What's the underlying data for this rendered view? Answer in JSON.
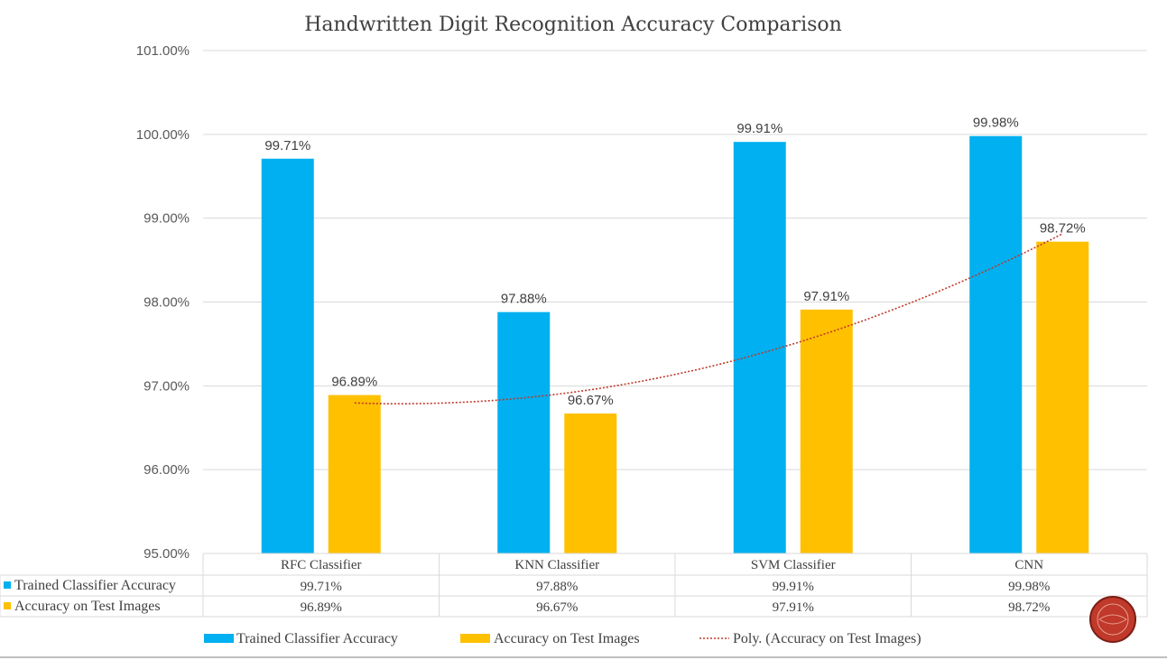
{
  "chart_data": {
    "type": "bar",
    "title": "Handwritten Digit Recognition Accuracy Comparison",
    "categories": [
      "RFC Classifier",
      "KNN Classifier",
      "SVM Classifier",
      "CNN"
    ],
    "series": [
      {
        "name": "Trained Classifier Accuracy",
        "values": [
          99.71,
          97.88,
          99.91,
          99.98
        ],
        "labels": [
          "99.71%",
          "97.88%",
          "99.91%",
          "99.98%"
        ],
        "color": "#00b0f0"
      },
      {
        "name": "Accuracy on Test Images",
        "values": [
          96.89,
          96.67,
          97.91,
          98.72
        ],
        "labels": [
          "96.89%",
          "96.67%",
          "97.91%",
          "98.72%"
        ],
        "color": "#ffc000"
      }
    ],
    "trendline": {
      "name": "Poly. (Accuracy on Test Images)",
      "type": "polynomial",
      "order": 2,
      "color": "#c0392b"
    },
    "ylim": [
      95,
      101
    ],
    "yticks": [
      95,
      96,
      97,
      98,
      99,
      100,
      101
    ],
    "ytick_labels": [
      "95.00%",
      "96.00%",
      "97.00%",
      "98.00%",
      "99.00%",
      "100.00%",
      "101.00%"
    ],
    "grid": true,
    "legend_position": "bottom",
    "data_table": true
  }
}
